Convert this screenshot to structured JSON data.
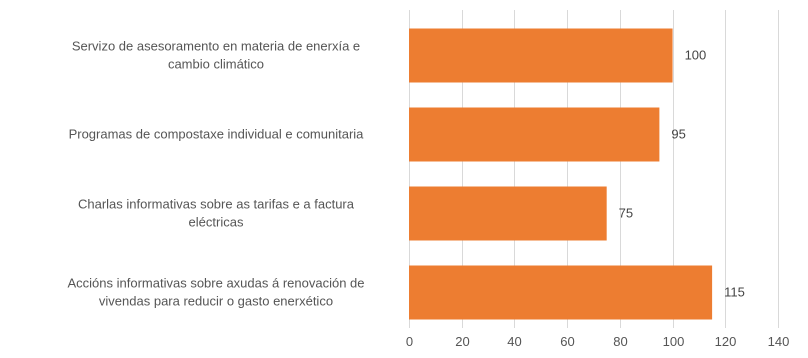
{
  "chart_data": {
    "type": "bar",
    "orientation": "horizontal",
    "categories": [
      [
        "Servizo de asesoramento en materia de enerxía e",
        "cambio climático"
      ],
      [
        "Programas de compostaxe individual e comunitaria"
      ],
      [
        "Charlas informativas sobre as tarifas e a factura",
        "eléctricas"
      ],
      [
        "Accións informativas sobre axudas á renovación de",
        "vivendas para reducir o gasto enerxético"
      ]
    ],
    "values": [
      100,
      95,
      75,
      115
    ],
    "data_labels": [
      "100",
      "95",
      "75",
      "115"
    ],
    "xlim": [
      0,
      140
    ],
    "xticks": [
      0,
      20,
      40,
      60,
      80,
      100,
      120,
      140
    ],
    "tick_labels": [
      "0",
      "20",
      "40",
      "60",
      "80",
      "100",
      "120",
      "140"
    ],
    "bar_color": "#ED7D31",
    "grid": "vertical",
    "legend": "none",
    "title": "",
    "xlabel": "",
    "ylabel": ""
  }
}
